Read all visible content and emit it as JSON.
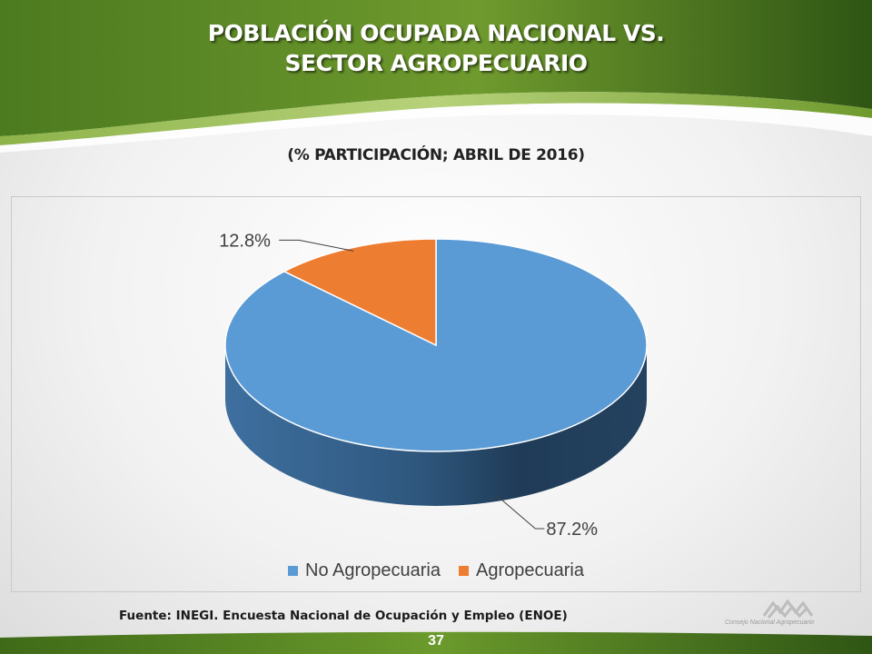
{
  "slide": {
    "title_line1": "POBLACIÓN OCUPADA NACIONAL VS.",
    "title_line2": "SECTOR AGROPECUARIO",
    "subtitle": "(% PARTICIPACIÓN;  ABRIL DE 2016)",
    "source": "Fuente: INEGI. Encuesta Nacional de Ocupación y Empleo (ENOE)",
    "page_number": "37",
    "logo_text": "Consejo Nacional Agropecuario",
    "colors": {
      "banner_green": "#4f7a21",
      "banner_dark": "#2f4f12"
    }
  },
  "chart_data": {
    "type": "pie",
    "style": "3d",
    "legend_position": "bottom",
    "slices": [
      {
        "name": "No Agropecuaria",
        "value": 87.2,
        "label": "87.2%",
        "color": "#5b9bd5"
      },
      {
        "name": "Agropecuaria",
        "value": 12.8,
        "label": "12.8%",
        "color": "#ed7d31"
      }
    ]
  }
}
